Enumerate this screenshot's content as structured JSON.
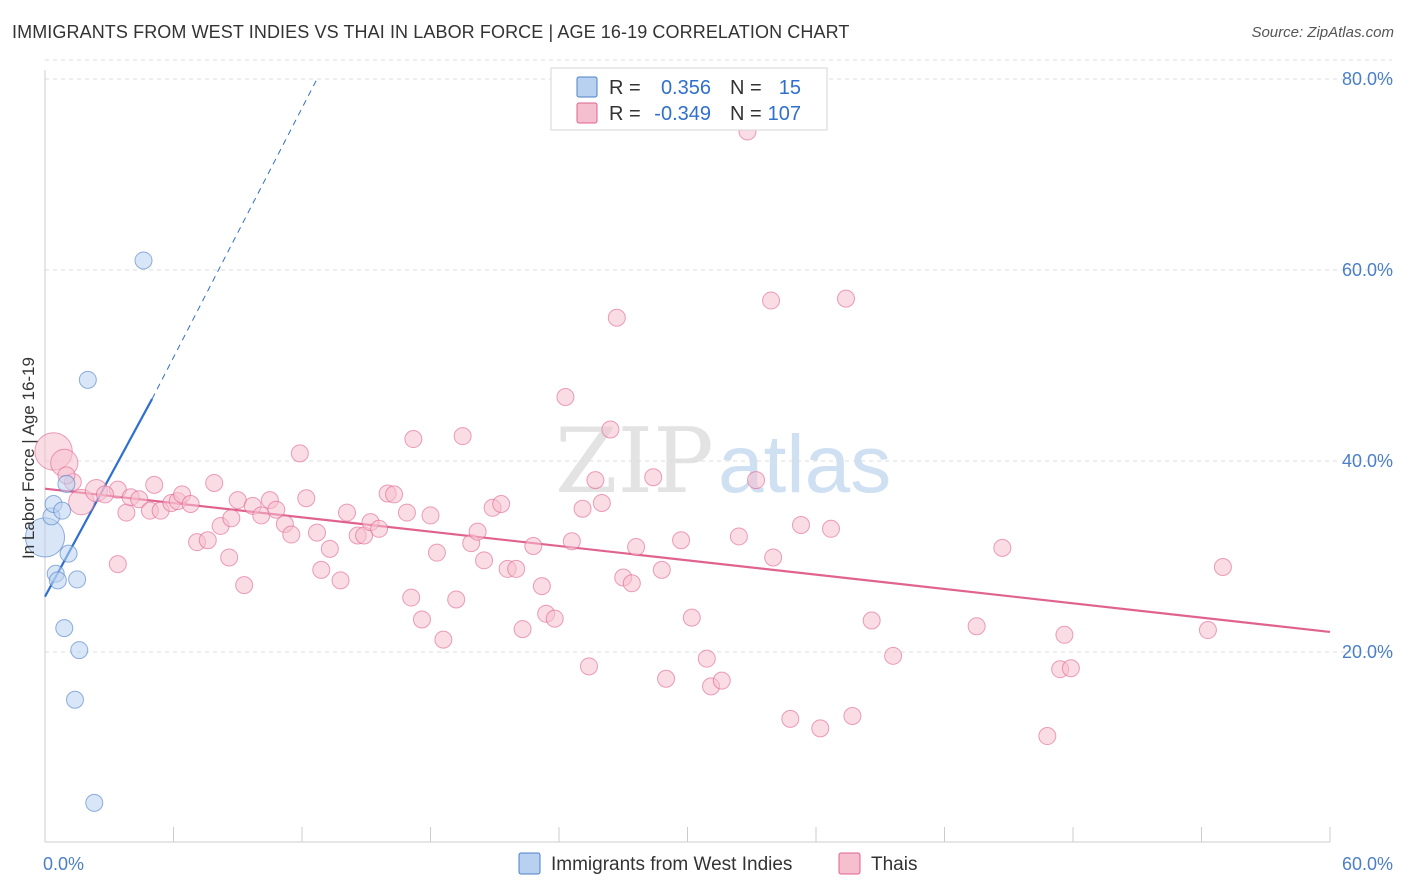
{
  "title": "IMMIGRANTS FROM WEST INDIES VS THAI IN LABOR FORCE | AGE 16-19 CORRELATION CHART",
  "source": "Source: ZipAtlas.com",
  "colors": {
    "blue": "#4a7fc7",
    "blue_fill": "#b9d1f1",
    "blue_line": "#2f6fce",
    "pink_fill": "#f6bfd0",
    "pink_line": "#e0638f",
    "grid": "#dcdcdc"
  },
  "legend": {
    "rows": [
      {
        "r_label": "R =",
        "r_value": "0.356",
        "n_label": "N =",
        "n_value": "15"
      },
      {
        "r_label": "R =",
        "r_value": "-0.349",
        "n_label": "N =",
        "n_value": "107"
      }
    ]
  },
  "watermark": {
    "zip": "ZIP",
    "atlas": "atlas"
  },
  "chart_data": {
    "type": "scatter",
    "xlabel": "",
    "ylabel": "In Labor Force | Age 16-19",
    "xlim": [
      0,
      60
    ],
    "ylim": [
      0,
      82
    ],
    "x_tick_labels": [
      {
        "value": 0,
        "label": "0.0%"
      },
      {
        "value": 60,
        "label": "60.0%"
      }
    ],
    "y_tick_labels": [
      {
        "value": 20,
        "label": "20.0%"
      },
      {
        "value": 40,
        "label": "40.0%"
      },
      {
        "value": 60,
        "label": "60.0%"
      },
      {
        "value": 80,
        "label": "80.0%"
      }
    ],
    "grid": true,
    "legend_position": "top-center",
    "series": [
      {
        "name": "Immigrants from West Indies",
        "color_key": "blue",
        "trend": {
          "x": [
            0.0,
            5.0
          ],
          "y": [
            25.8,
            46.5
          ],
          "dashed_x": [
            5.0,
            12.7
          ],
          "dashed_y": [
            46.5,
            80.0
          ]
        },
        "points": [
          [
            0.0,
            32.0,
            2.3
          ],
          [
            0.3,
            34.2,
            1
          ],
          [
            0.4,
            35.5,
            1
          ],
          [
            0.5,
            28.2,
            1
          ],
          [
            0.6,
            27.5,
            1
          ],
          [
            0.8,
            34.8,
            1
          ],
          [
            1.0,
            37.6,
            1
          ],
          [
            1.1,
            30.3,
            1
          ],
          [
            0.9,
            22.5,
            1
          ],
          [
            1.5,
            27.6,
            1
          ],
          [
            1.6,
            20.2,
            1
          ],
          [
            1.4,
            15.0,
            1
          ],
          [
            2.0,
            48.5,
            1
          ],
          [
            4.6,
            61.0,
            1
          ],
          [
            2.3,
            4.2,
            1
          ]
        ]
      },
      {
        "name": "Thais",
        "color_key": "pink",
        "trend": {
          "x": [
            0.0,
            60.0
          ],
          "y": [
            37.1,
            22.1
          ]
        },
        "points": [
          [
            0.4,
            41.0,
            2.2
          ],
          [
            0.9,
            39.8,
            1.6
          ],
          [
            1.3,
            37.8,
            1
          ],
          [
            1.7,
            35.7,
            1.5
          ],
          [
            2.4,
            36.9,
            1.3
          ],
          [
            3.4,
            29.2,
            1
          ],
          [
            3.4,
            37.0,
            1
          ],
          [
            3.8,
            34.6,
            1
          ],
          [
            4.0,
            36.2,
            1
          ],
          [
            4.4,
            36.0,
            1
          ],
          [
            4.9,
            34.8,
            1
          ],
          [
            5.1,
            37.5,
            1
          ],
          [
            5.4,
            34.8,
            1
          ],
          [
            5.9,
            35.6,
            1
          ],
          [
            6.2,
            35.8,
            1
          ],
          [
            6.4,
            36.5,
            1
          ],
          [
            6.8,
            35.5,
            1
          ],
          [
            7.1,
            31.5,
            1
          ],
          [
            7.6,
            31.7,
            1
          ],
          [
            7.9,
            37.7,
            1
          ],
          [
            8.2,
            33.2,
            1
          ],
          [
            8.6,
            29.9,
            1
          ],
          [
            9.0,
            35.9,
            1
          ],
          [
            9.3,
            27.0,
            1
          ],
          [
            9.7,
            35.3,
            1
          ],
          [
            10.1,
            34.3,
            1
          ],
          [
            10.5,
            35.9,
            1
          ],
          [
            10.8,
            34.9,
            1
          ],
          [
            11.2,
            33.4,
            1
          ],
          [
            11.5,
            32.3,
            1
          ],
          [
            11.9,
            40.8,
            1
          ],
          [
            12.2,
            36.1,
            1
          ],
          [
            12.7,
            32.5,
            1
          ],
          [
            12.9,
            28.6,
            1
          ],
          [
            13.3,
            30.8,
            1
          ],
          [
            13.8,
            27.5,
            1
          ],
          [
            14.1,
            34.6,
            1
          ],
          [
            14.6,
            32.2,
            1
          ],
          [
            14.9,
            32.2,
            1
          ],
          [
            15.2,
            33.6,
            1
          ],
          [
            15.6,
            32.9,
            1
          ],
          [
            16.0,
            36.6,
            1
          ],
          [
            16.3,
            36.5,
            1
          ],
          [
            16.9,
            34.6,
            1
          ],
          [
            17.1,
            25.7,
            1
          ],
          [
            17.6,
            23.4,
            1
          ],
          [
            17.2,
            42.3,
            1
          ],
          [
            18.0,
            34.3,
            1
          ],
          [
            18.3,
            30.4,
            1
          ],
          [
            18.6,
            21.3,
            1
          ],
          [
            19.2,
            25.5,
            1
          ],
          [
            19.5,
            42.6,
            1
          ],
          [
            19.9,
            31.4,
            1
          ],
          [
            20.2,
            32.6,
            1
          ],
          [
            20.5,
            29.6,
            1
          ],
          [
            20.9,
            35.1,
            1
          ],
          [
            21.3,
            35.5,
            1
          ],
          [
            21.6,
            28.7,
            1
          ],
          [
            22.0,
            28.7,
            1
          ],
          [
            22.3,
            22.4,
            1
          ],
          [
            22.8,
            31.1,
            1
          ],
          [
            23.2,
            26.9,
            1
          ],
          [
            23.4,
            24.0,
            1
          ],
          [
            23.8,
            23.5,
            1
          ],
          [
            24.3,
            46.7,
            1
          ],
          [
            24.6,
            31.6,
            1
          ],
          [
            25.1,
            35.0,
            1
          ],
          [
            25.4,
            18.5,
            1
          ],
          [
            25.7,
            38.0,
            1
          ],
          [
            26.0,
            35.6,
            1
          ],
          [
            26.4,
            43.3,
            1
          ],
          [
            26.7,
            55.0,
            1
          ],
          [
            27.0,
            27.8,
            1
          ],
          [
            27.4,
            27.2,
            1
          ],
          [
            27.6,
            31.0,
            1
          ],
          [
            28.4,
            38.3,
            1
          ],
          [
            28.8,
            28.6,
            1
          ],
          [
            29.0,
            17.2,
            1
          ],
          [
            29.7,
            31.7,
            1
          ],
          [
            30.2,
            23.6,
            1
          ],
          [
            30.9,
            19.3,
            1
          ],
          [
            31.1,
            16.4,
            1
          ],
          [
            31.6,
            17.0,
            1
          ],
          [
            32.4,
            32.1,
            1
          ],
          [
            32.8,
            74.5,
            1
          ],
          [
            33.2,
            38.0,
            1
          ],
          [
            34.0,
            29.9,
            1
          ],
          [
            33.9,
            56.8,
            1
          ],
          [
            34.8,
            13.0,
            1
          ],
          [
            35.3,
            33.3,
            1
          ],
          [
            36.2,
            12.0,
            1
          ],
          [
            36.7,
            32.9,
            1
          ],
          [
            37.4,
            57.0,
            1
          ],
          [
            37.7,
            13.3,
            1
          ],
          [
            38.6,
            23.3,
            1
          ],
          [
            39.6,
            19.6,
            1
          ],
          [
            43.5,
            22.7,
            1
          ],
          [
            44.7,
            30.9,
            1
          ],
          [
            46.8,
            11.2,
            1
          ],
          [
            47.4,
            18.2,
            1
          ],
          [
            47.6,
            21.8,
            1
          ],
          [
            47.9,
            18.3,
            1
          ],
          [
            54.3,
            22.3,
            1
          ],
          [
            55.0,
            28.9,
            1
          ],
          [
            1.0,
            38.5,
            1
          ],
          [
            2.8,
            36.5,
            1
          ],
          [
            8.7,
            34.0,
            1
          ]
        ]
      }
    ]
  }
}
